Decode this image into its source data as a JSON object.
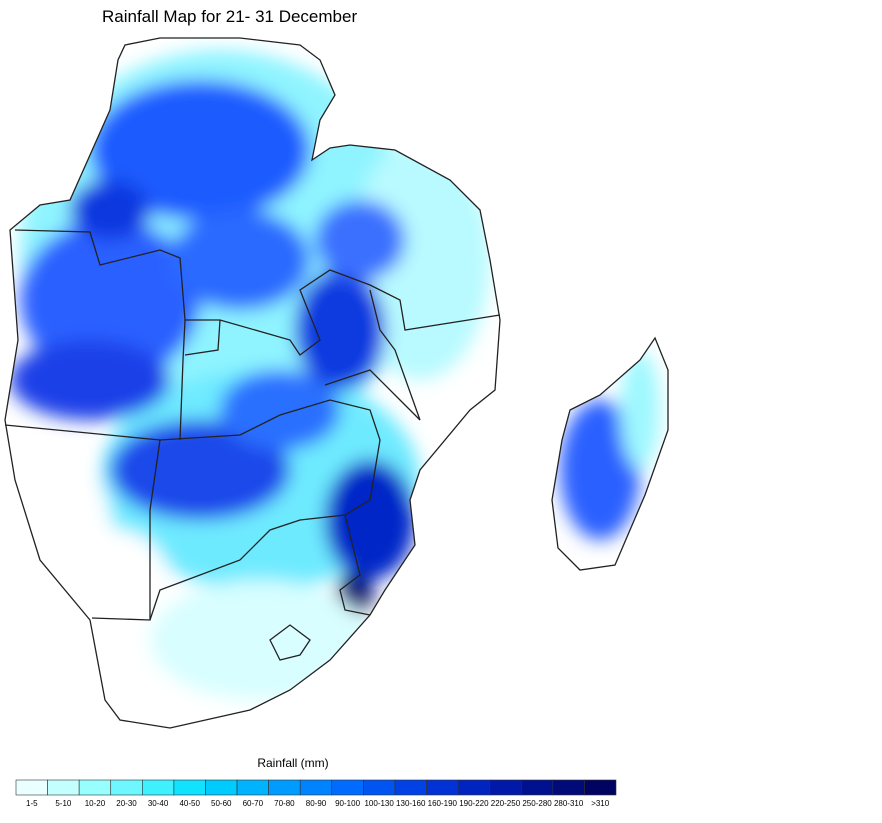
{
  "title": "Rainfall Map for 21- 31 December",
  "legend": {
    "title": "Rainfall (mm)",
    "labels": [
      "1-5",
      "5-10",
      "10-20",
      "20-30",
      "30-40",
      "40-50",
      "50-60",
      "60-70",
      "70-80",
      "80-90",
      "90-100",
      "100-130",
      "130-160",
      "160-190",
      "190-220",
      "220-250",
      "250-280",
      "280-310",
      ">310"
    ],
    "colors": [
      "#eaffff",
      "#c4ffff",
      "#98ffff",
      "#6ef7ff",
      "#3ff0ff",
      "#10e2ff",
      "#00cbff",
      "#00b3ff",
      "#009bff",
      "#0083ff",
      "#006cff",
      "#0055f2",
      "#0042e6",
      "#0032d6",
      "#0024c0",
      "#0019a8",
      "#001190",
      "#000a78",
      "#000460"
    ]
  }
}
